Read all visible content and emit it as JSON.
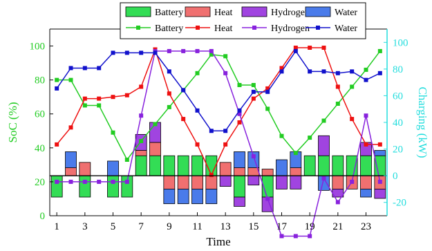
{
  "chart_data": {
    "type": "bar+line",
    "xlabel": "Time",
    "ylabel_left": "SoC (%)",
    "ylabel_right": "Charging (kW)",
    "xlim": [
      0.5,
      24.5
    ],
    "ylim_left": [
      0,
      110
    ],
    "ylim_right": [
      -30,
      110
    ],
    "x": [
      1,
      2,
      3,
      4,
      5,
      6,
      7,
      8,
      9,
      10,
      11,
      12,
      13,
      14,
      15,
      16,
      17,
      18,
      19,
      20,
      21,
      22,
      23,
      24
    ],
    "xticks": [
      1,
      3,
      5,
      7,
      9,
      11,
      13,
      15,
      17,
      19,
      21,
      23
    ],
    "yticks_left": [
      0,
      20,
      40,
      60,
      80,
      100
    ],
    "yticks_right": [
      -20,
      0,
      20,
      40,
      60,
      80,
      100
    ],
    "colors": {
      "battery": "#22cc22",
      "heat": "#ee1111",
      "hydrogen": "#8822dd",
      "water": "#1111cc",
      "battery_bar": "#33dd55",
      "heat_bar": "#f07070",
      "hydrogen_bar": "#a044e0",
      "water_bar": "#4a7bea",
      "right_axis": "#22dddd"
    },
    "bar_series": [
      {
        "name": "Battery",
        "values": [
          -16,
          0,
          -16,
          0,
          -16,
          -16,
          15,
          15,
          15,
          15,
          15,
          15,
          0,
          -16,
          0,
          -16,
          0,
          0,
          15,
          15,
          15,
          15,
          15,
          15
        ]
      },
      {
        "name": "Heat",
        "values": [
          0,
          6,
          10,
          0,
          0,
          0,
          4,
          10,
          -10,
          -10,
          -10,
          -10,
          10,
          6,
          6,
          5,
          0,
          6,
          0,
          0,
          -10,
          -10,
          -10,
          -10
        ]
      },
      {
        "name": "Hydrogen",
        "values": [
          0,
          0,
          0,
          0,
          0,
          0,
          12,
          15,
          0,
          0,
          0,
          0,
          -8,
          -7,
          -7,
          -11,
          -10,
          -10,
          0,
          15,
          -6,
          0,
          10,
          -7
        ]
      },
      {
        "name": "Water",
        "values": [
          0,
          12,
          0,
          0,
          11,
          0,
          0,
          0,
          -11,
          -11,
          -11,
          -11,
          0,
          12,
          12,
          0,
          12,
          12,
          0,
          -11,
          0,
          0,
          -6,
          4
        ]
      }
    ],
    "line_series": [
      {
        "name": "Battery",
        "values": [
          80,
          80,
          65,
          65,
          49,
          33,
          44,
          54,
          64,
          74,
          84,
          95,
          94,
          77,
          77,
          63,
          47,
          37,
          46,
          56,
          66,
          76,
          86,
          97
        ]
      },
      {
        "name": "Heat",
        "values": [
          42,
          52,
          69,
          69,
          70,
          71,
          76,
          98,
          72,
          57,
          42,
          24,
          42,
          55,
          69,
          75,
          87,
          99,
          99,
          99,
          76,
          57,
          42,
          42
        ]
      },
      {
        "name": "Hydrogen",
        "values": [
          20,
          20,
          20,
          20,
          20,
          20,
          59,
          97,
          97,
          97,
          97,
          97,
          84,
          60,
          35,
          10,
          -12,
          -12,
          -12,
          22,
          8,
          20,
          59,
          20
        ]
      },
      {
        "name": "Water",
        "values": [
          75,
          87,
          87,
          87,
          96,
          96,
          96,
          96,
          85,
          74,
          62,
          50,
          50,
          62,
          73,
          73,
          85,
          97,
          85,
          85,
          84,
          85,
          80,
          84
        ]
      }
    ]
  }
}
